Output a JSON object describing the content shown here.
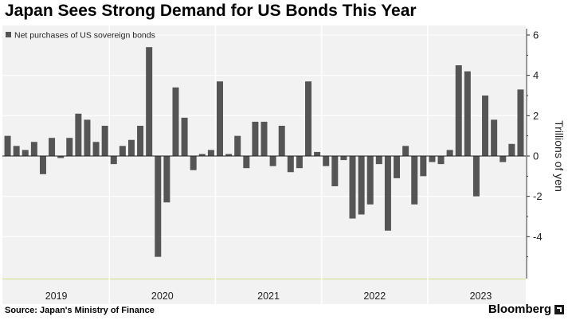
{
  "title": "Japan Sees Strong Demand for US Bonds This Year",
  "source_label": "Source: Japan's Ministry of Finance",
  "brand": "Bloomberg",
  "colors": {
    "bar": "#555555",
    "plot_bg": "#f2f2f2",
    "grid": "#ffffff",
    "baseline": "#222222",
    "axis_highlight": "#d8e6a6"
  },
  "chart_data": {
    "type": "bar",
    "title": "Japan Sees Strong Demand for US Bonds This Year",
    "series": [
      {
        "name": "Net purchases of US sovereign bonds",
        "frequency": "monthly",
        "start": "2019-01",
        "values": [
          1.0,
          0.5,
          0.3,
          0.7,
          -0.9,
          0.9,
          -0.1,
          0.9,
          2.1,
          1.8,
          0.7,
          1.5,
          -0.4,
          0.5,
          0.8,
          1.5,
          5.4,
          -5.0,
          -2.3,
          3.4,
          1.9,
          -0.7,
          0.1,
          0.3,
          3.7,
          0.1,
          1.0,
          -0.6,
          1.7,
          1.7,
          -0.5,
          1.5,
          -0.8,
          -0.6,
          3.7,
          0.2,
          -0.5,
          -1.5,
          -0.2,
          -3.1,
          -2.9,
          -2.4,
          -0.4,
          -3.7,
          -1.1,
          0.5,
          -2.4,
          -1.0,
          -0.3,
          -0.4,
          0.3,
          4.5,
          4.2,
          -2.0,
          3.0,
          1.8,
          -0.3,
          0.6,
          3.3
        ]
      }
    ],
    "legend": "Net purchases of US sovereign bonds",
    "legend_position": "top-left",
    "ylabel": "Trillions of yen",
    "ylim": [
      -6,
      6
    ],
    "yticks": [
      6,
      4,
      2,
      0,
      -2,
      -4
    ],
    "xlabel": "",
    "x_groups": [
      "2019",
      "2020",
      "2021",
      "2022",
      "2023"
    ],
    "grid": true
  }
}
